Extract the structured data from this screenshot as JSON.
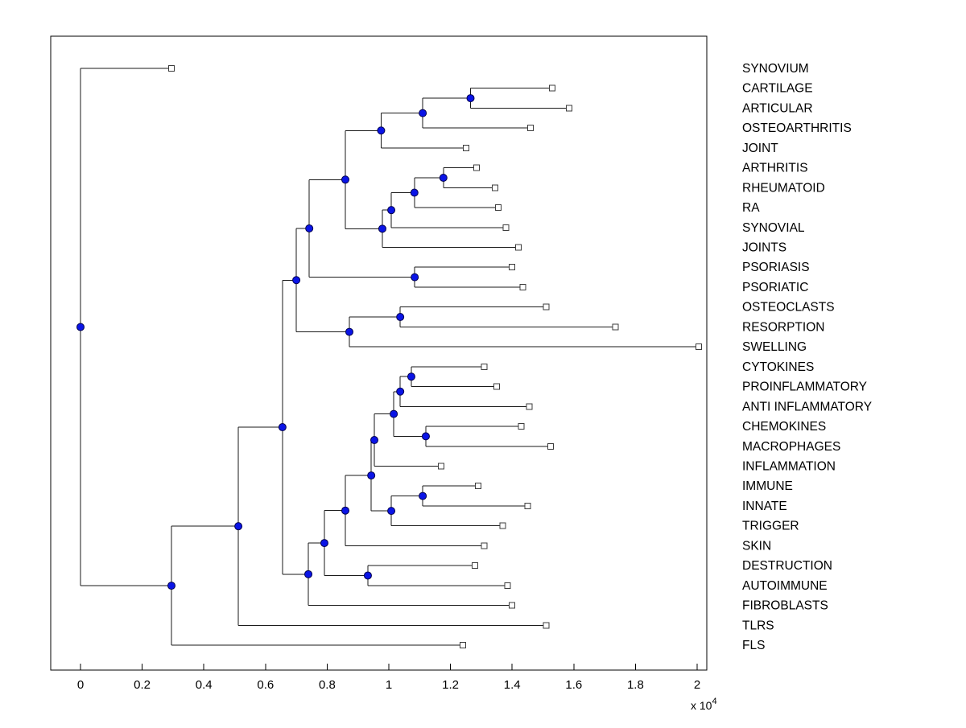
{
  "figure": {
    "description": "Hierarchical clustering dendrogram of disease/biology terms, root at left, leaves at right"
  },
  "axis": {
    "x_tick_labels": [
      "0",
      "0.2",
      "0.4",
      "0.6",
      "0.8",
      "1",
      "1.2",
      "1.4",
      "1.6",
      "1.8",
      "2"
    ],
    "x_tick_values": [
      0,
      0.2,
      0.4,
      0.6,
      0.8,
      1.0,
      1.2,
      1.4,
      1.6,
      1.8,
      2.0
    ],
    "multiplier_base": "x 10",
    "multiplier_exp": "4"
  },
  "colors": {
    "line": "#1a1a1a",
    "axis": "#000000",
    "node_fill": "#0a14e6",
    "node_stroke": "#00004d",
    "leaf_marker_fill": "#ffffff",
    "leaf_marker_stroke": "#3c3c3c",
    "text": "#000000"
  },
  "chart_data": {
    "type": "dendrogram",
    "orientation": "horizontal: root at left (x=0), leaves at right",
    "x_units": "distance, in units of 1e4 (see axis multiplier)",
    "x_range": [
      -0.097,
      2.031
    ],
    "leaves": [
      {
        "label": "SYNOVIUM",
        "tip_x": 0.295
      },
      {
        "label": "CARTILAGE",
        "tip_x": 1.53
      },
      {
        "label": "ARTICULAR",
        "tip_x": 1.585
      },
      {
        "label": "OSTEOARTHRITIS",
        "tip_x": 1.46
      },
      {
        "label": "JOINT",
        "tip_x": 1.25
      },
      {
        "label": "ARTHRITIS",
        "tip_x": 1.285
      },
      {
        "label": "RHEUMATOID",
        "tip_x": 1.345
      },
      {
        "label": "RA",
        "tip_x": 1.355
      },
      {
        "label": "SYNOVIAL",
        "tip_x": 1.38
      },
      {
        "label": "JOINTS",
        "tip_x": 1.42
      },
      {
        "label": "PSORIASIS",
        "tip_x": 1.4
      },
      {
        "label": "PSORIATIC",
        "tip_x": 1.435
      },
      {
        "label": "OSTEOCLASTS",
        "tip_x": 1.51
      },
      {
        "label": "RESORPTION",
        "tip_x": 1.735
      },
      {
        "label": "SWELLING",
        "tip_x": 2.005
      },
      {
        "label": "CYTOKINES",
        "tip_x": 1.31
      },
      {
        "label": "PROINFLAMMATORY",
        "tip_x": 1.35
      },
      {
        "label": "ANTI INFLAMMATORY",
        "tip_x": 1.455
      },
      {
        "label": "CHEMOKINES",
        "tip_x": 1.43
      },
      {
        "label": "MACROPHAGES",
        "tip_x": 1.525
      },
      {
        "label": "INFLAMMATION",
        "tip_x": 1.17
      },
      {
        "label": "IMMUNE",
        "tip_x": 1.29
      },
      {
        "label": "INNATE",
        "tip_x": 1.45
      },
      {
        "label": "TRIGGER",
        "tip_x": 1.37
      },
      {
        "label": "SKIN",
        "tip_x": 1.31
      },
      {
        "label": "DESTRUCTION",
        "tip_x": 1.28
      },
      {
        "label": "AUTOIMMUNE",
        "tip_x": 1.385
      },
      {
        "label": "FIBROBLASTS",
        "tip_x": 1.4
      },
      {
        "label": "TLRS",
        "tip_x": 1.51
      },
      {
        "label": "FLS",
        "tip_x": 1.24
      }
    ],
    "nodes": [
      {
        "id": "cart-artic",
        "x": 1.265,
        "children": [
          1,
          2
        ]
      },
      {
        "id": "plus-osteoarthritis",
        "x": 1.11,
        "children": [
          "cart-artic",
          3
        ]
      },
      {
        "id": "plus-joint",
        "x": 0.975,
        "children": [
          "plus-osteoarthritis",
          4
        ]
      },
      {
        "id": "arth-rheum",
        "x": 1.177,
        "children": [
          5,
          6
        ]
      },
      {
        "id": "plus-ra",
        "x": 1.083,
        "children": [
          "arth-rheum",
          7
        ]
      },
      {
        "id": "plus-synovial",
        "x": 1.008,
        "children": [
          "plus-ra",
          8
        ]
      },
      {
        "id": "plus-joints",
        "x": 0.979,
        "children": [
          "plus-synovial",
          9
        ]
      },
      {
        "id": "joint-cluster",
        "x": 0.859,
        "children": [
          "plus-joint",
          "plus-joints"
        ]
      },
      {
        "id": "psoriasis-pair",
        "x": 1.084,
        "children": [
          10,
          11
        ]
      },
      {
        "id": "arthritis-psoriasis",
        "x": 0.742,
        "children": [
          "joint-cluster",
          "psoriasis-pair"
        ]
      },
      {
        "id": "osteo-resorp",
        "x": 1.037,
        "children": [
          12,
          13
        ]
      },
      {
        "id": "plus-swelling",
        "x": 0.872,
        "children": [
          "osteo-resorp",
          14
        ]
      },
      {
        "id": "upper-cluster",
        "x": 0.7,
        "children": [
          "arthritis-psoriasis",
          "plus-swelling"
        ]
      },
      {
        "id": "cyto-proinf",
        "x": 1.073,
        "children": [
          15,
          16
        ]
      },
      {
        "id": "plus-antiinf",
        "x": 1.037,
        "children": [
          "cyto-proinf",
          17
        ]
      },
      {
        "id": "chemo-macro",
        "x": 1.12,
        "children": [
          18,
          19
        ]
      },
      {
        "id": "cytokine-cluster",
        "x": 1.016,
        "children": [
          "plus-antiinf",
          "chemo-macro"
        ]
      },
      {
        "id": "plus-inflammation",
        "x": 0.953,
        "children": [
          "cytokine-cluster",
          20
        ]
      },
      {
        "id": "immune-innate",
        "x": 1.11,
        "children": [
          21,
          22
        ]
      },
      {
        "id": "plus-trigger",
        "x": 1.008,
        "children": [
          "immune-innate",
          23
        ]
      },
      {
        "id": "inflam-immune",
        "x": 0.943,
        "children": [
          "plus-inflammation",
          "plus-trigger"
        ]
      },
      {
        "id": "plus-skin",
        "x": 0.859,
        "children": [
          "inflam-immune",
          24
        ]
      },
      {
        "id": "destr-autoimm",
        "x": 0.932,
        "children": [
          25,
          26
        ]
      },
      {
        "id": "lower-mid",
        "x": 0.791,
        "children": [
          "plus-skin",
          "destr-autoimm"
        ]
      },
      {
        "id": "plus-fibroblasts",
        "x": 0.739,
        "children": [
          "lower-mid",
          27
        ]
      },
      {
        "id": "upper-lower-join",
        "x": 0.655,
        "children": [
          "upper-cluster",
          "plus-fibroblasts"
        ]
      },
      {
        "id": "plus-tlrs",
        "x": 0.512,
        "children": [
          "upper-lower-join",
          28
        ]
      },
      {
        "id": "plus-fls",
        "x": 0.295,
        "children": [
          "plus-tlrs",
          29
        ]
      },
      {
        "id": "root",
        "x": 0.0,
        "children": [
          0,
          "plus-fls"
        ]
      }
    ],
    "root": "root"
  }
}
